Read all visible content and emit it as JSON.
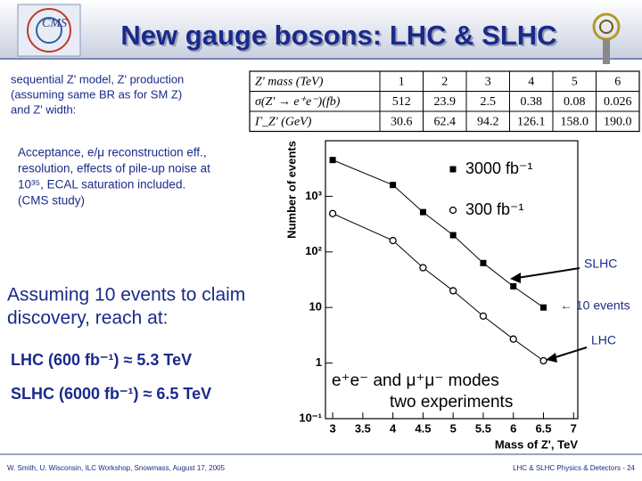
{
  "header": {
    "title": "New gauge bosons: LHC & SLHC"
  },
  "intro": [
    "sequential Z' model, Z' production",
    "(assuming same BR as for SM  Z)",
    "and Z' width:"
  ],
  "table": {
    "rows": [
      [
        "Z' mass (TeV)",
        "1",
        "2",
        "3",
        "4",
        "5",
        "6"
      ],
      [
        "σ(Z' → e⁺e⁻)(fb)",
        "512",
        "23.9",
        "2.5",
        "0.38",
        "0.08",
        "0.026"
      ],
      [
        "Γ_Z' (GeV)",
        "30.6",
        "62.4",
        "94.2",
        "126.1",
        "158.0",
        "190.0"
      ]
    ]
  },
  "notes": [
    "Acceptance, e/μ reconstruction eff.,",
    "resolution, effects of pile-up noise at",
    "10³⁵, ECAL saturation included.",
    "(CMS study)"
  ],
  "claim": [
    "Assuming 10 events to claim",
    "discovery, reach at:"
  ],
  "lhc_reach": "LHC (600 fb⁻¹) ≈ 5.3 TeV",
  "slhc_reach": "SLHC (6000 fb⁻¹) ≈ 6.5 TeV",
  "chart_data": {
    "type": "line",
    "xlabel": "Mass of Z', TeV",
    "ylabel": "Number of events",
    "x": [
      3,
      4,
      4.5,
      5,
      5.5,
      6,
      6.5
    ],
    "series": [
      {
        "name": "3000 fb⁻¹",
        "color": "#000000",
        "marker": "square",
        "values": [
          4500,
          1600,
          520,
          200,
          63,
          24,
          10
        ]
      },
      {
        "name": "300 fb⁻¹",
        "color": "#000000",
        "marker": "circle",
        "values": [
          490,
          160,
          52,
          20,
          7,
          2.7,
          1.1
        ]
      }
    ],
    "xlim": [
      2.88,
      7.07
    ],
    "xticks": [
      3,
      3.5,
      4,
      4.5,
      5,
      5.5,
      6,
      6.5,
      7
    ],
    "ylim": [
      0.1,
      10000
    ],
    "log_y": true,
    "yticks": [
      {
        "value": 0.1,
        "label": "10⁻¹"
      },
      1,
      10,
      {
        "value": 100,
        "label": "10²"
      },
      {
        "value": 1000,
        "label": "10³"
      }
    ],
    "annotations": [
      "e⁺e⁻ and μ⁺μ⁻ modes",
      "two experiments"
    ]
  },
  "callouts": {
    "slhc": "SLHC",
    "events": "← 10 events",
    "lhc": "LHC"
  },
  "footer": {
    "left": "W. Smith, U. Wisconsin, ILC Workshop, Snowmass, August 17, 2005",
    "right": "LHC & SLHC Physics & Detectors - 24"
  }
}
